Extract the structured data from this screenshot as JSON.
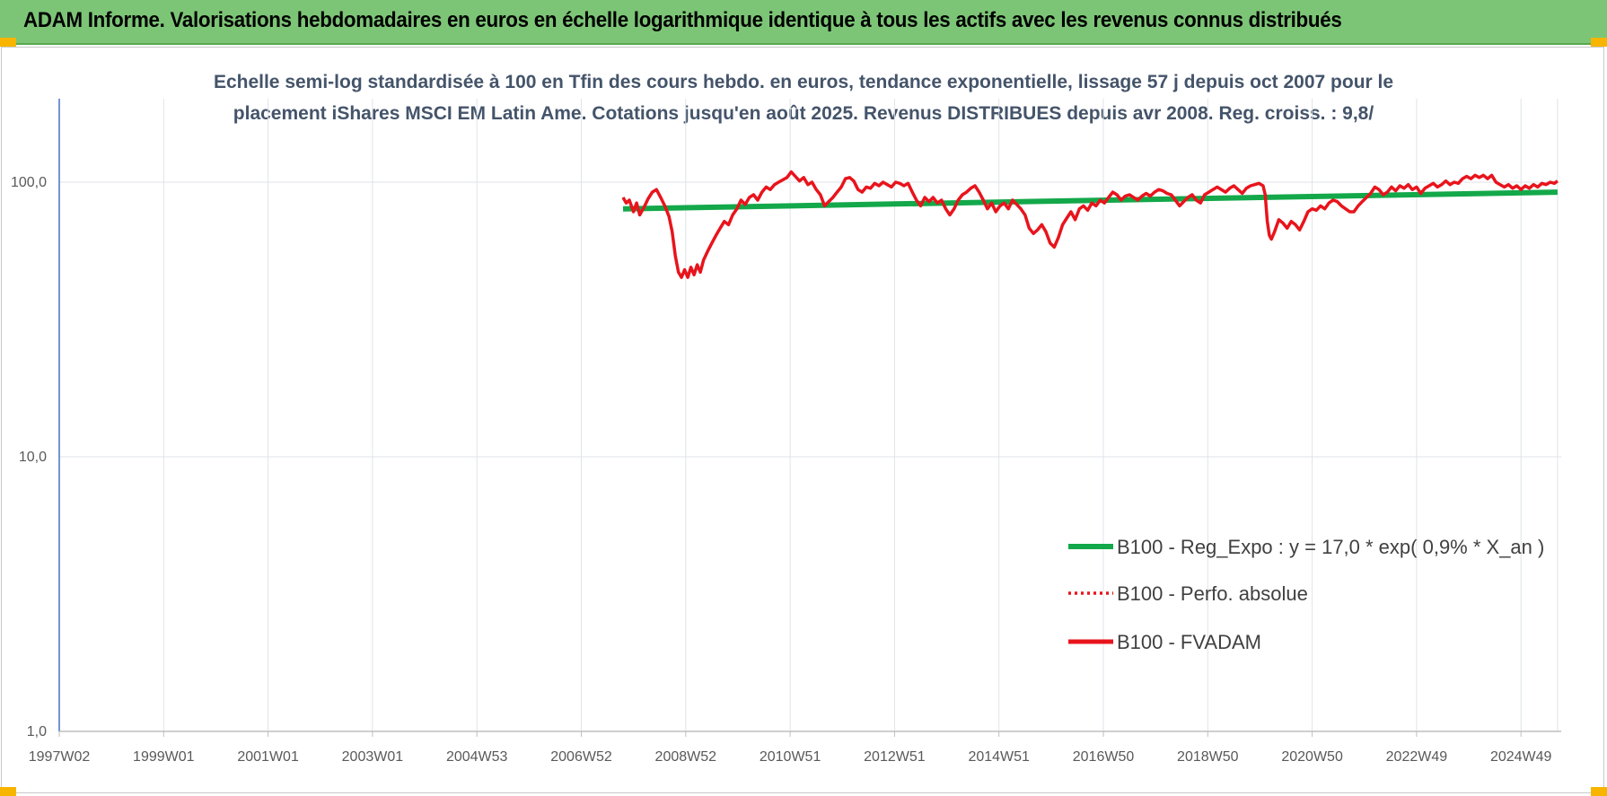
{
  "header": {
    "title": "ADAM Informe. Valorisations hebdomadaires en euros en échelle logarithmique identique à tous les actifs avec les revenus connus distribués"
  },
  "colors": {
    "header_bg": "#7cc576",
    "corner_marks": "#f7b500",
    "regression": "#13a84a",
    "fvadam": "#e8141c",
    "perfo": "#e8141c",
    "grid": "#dfe3e8",
    "axis": "#4472c4"
  },
  "chart_data": {
    "type": "line",
    "title_lines": [
      "Echelle semi-log standardisée à 100 en Tfin des cours hebdo. en euros, tendance exponentielle, lissage 57 j depuis oct 2007 pour le",
      "placement iShares MSCI EM Latin Ame. Cotations jusqu'en août 2025. Revenus DISTRIBUES depuis avr 2008. Reg. croiss. : 9,8/"
    ],
    "y_scale": "log",
    "ylim": [
      1,
      100
    ],
    "y_ticks": [
      "1,0",
      "10,0",
      "100,0"
    ],
    "x_range": [
      1997.0,
      2025.7
    ],
    "x_ticks": [
      {
        "label": "1997W02",
        "year": 1997.0
      },
      {
        "label": "1999W01",
        "year": 1999.0
      },
      {
        "label": "2001W01",
        "year": 2001.0
      },
      {
        "label": "2003W01",
        "year": 2003.0
      },
      {
        "label": "2004W53",
        "year": 2005.0
      },
      {
        "label": "2006W52",
        "year": 2007.0
      },
      {
        "label": "2008W52",
        "year": 2009.0
      },
      {
        "label": "2010W51",
        "year": 2011.0
      },
      {
        "label": "2012W51",
        "year": 2013.0
      },
      {
        "label": "2014W51",
        "year": 2015.0
      },
      {
        "label": "2016W50",
        "year": 2017.0
      },
      {
        "label": "2018W50",
        "year": 2019.0
      },
      {
        "label": "2020W50",
        "year": 2021.0
      },
      {
        "label": "2022W49",
        "year": 2023.0
      },
      {
        "label": "2024W49",
        "year": 2025.0
      }
    ],
    "grid": true,
    "legend_position": "bottom-right",
    "series": [
      {
        "name": "B100 - Reg_Expo : y = 17,0 * exp( 0,9% *  X_an )",
        "style": "solid-thick",
        "color": "#13a84a",
        "points": [
          [
            2007.8,
            80
          ],
          [
            2025.7,
            92
          ]
        ]
      },
      {
        "name": "B100 - Perfo. absolue",
        "style": "dotted",
        "color": "#e8141c",
        "points": []
      },
      {
        "name": "B100 - FVADAM",
        "style": "solid",
        "color": "#e8141c",
        "points": [
          [
            2007.8,
            88
          ],
          [
            2007.86,
            84
          ],
          [
            2007.92,
            86
          ],
          [
            2008.0,
            78
          ],
          [
            2008.06,
            84
          ],
          [
            2008.12,
            76
          ],
          [
            2008.2,
            81
          ],
          [
            2008.28,
            87
          ],
          [
            2008.36,
            92
          ],
          [
            2008.44,
            94
          ],
          [
            2008.52,
            88
          ],
          [
            2008.6,
            82
          ],
          [
            2008.68,
            75
          ],
          [
            2008.74,
            66
          ],
          [
            2008.8,
            54
          ],
          [
            2008.86,
            47
          ],
          [
            2008.92,
            45
          ],
          [
            2008.98,
            48
          ],
          [
            2009.04,
            45
          ],
          [
            2009.1,
            49
          ],
          [
            2009.16,
            46
          ],
          [
            2009.22,
            50
          ],
          [
            2009.28,
            47
          ],
          [
            2009.34,
            52
          ],
          [
            2009.42,
            56
          ],
          [
            2009.5,
            60
          ],
          [
            2009.58,
            64
          ],
          [
            2009.66,
            68
          ],
          [
            2009.74,
            72
          ],
          [
            2009.82,
            70
          ],
          [
            2009.9,
            76
          ],
          [
            2009.98,
            80
          ],
          [
            2010.06,
            86
          ],
          [
            2010.14,
            83
          ],
          [
            2010.22,
            88
          ],
          [
            2010.3,
            90
          ],
          [
            2010.38,
            86
          ],
          [
            2010.46,
            92
          ],
          [
            2010.54,
            96
          ],
          [
            2010.62,
            94
          ],
          [
            2010.7,
            98
          ],
          [
            2010.78,
            100
          ],
          [
            2010.86,
            102
          ],
          [
            2010.94,
            104
          ],
          [
            2011.02,
            109
          ],
          [
            2011.1,
            105
          ],
          [
            2011.18,
            101
          ],
          [
            2011.26,
            104
          ],
          [
            2011.34,
            98
          ],
          [
            2011.42,
            100
          ],
          [
            2011.5,
            94
          ],
          [
            2011.58,
            90
          ],
          [
            2011.66,
            82
          ],
          [
            2011.74,
            85
          ],
          [
            2011.82,
            88
          ],
          [
            2011.9,
            92
          ],
          [
            2011.98,
            96
          ],
          [
            2012.06,
            103
          ],
          [
            2012.14,
            104
          ],
          [
            2012.22,
            101
          ],
          [
            2012.3,
            94
          ],
          [
            2012.38,
            92
          ],
          [
            2012.46,
            96
          ],
          [
            2012.54,
            95
          ],
          [
            2012.62,
            99
          ],
          [
            2012.7,
            97
          ],
          [
            2012.78,
            100
          ],
          [
            2012.86,
            98
          ],
          [
            2012.94,
            96
          ],
          [
            2013.02,
            100
          ],
          [
            2013.1,
            99
          ],
          [
            2013.18,
            97
          ],
          [
            2013.26,
            99
          ],
          [
            2013.34,
            92
          ],
          [
            2013.42,
            86
          ],
          [
            2013.5,
            82
          ],
          [
            2013.58,
            88
          ],
          [
            2013.66,
            85
          ],
          [
            2013.74,
            88
          ],
          [
            2013.82,
            84
          ],
          [
            2013.9,
            86
          ],
          [
            2013.98,
            80
          ],
          [
            2014.06,
            76
          ],
          [
            2014.14,
            80
          ],
          [
            2014.22,
            86
          ],
          [
            2014.3,
            90
          ],
          [
            2014.38,
            92
          ],
          [
            2014.46,
            95
          ],
          [
            2014.54,
            97
          ],
          [
            2014.62,
            92
          ],
          [
            2014.7,
            86
          ],
          [
            2014.78,
            80
          ],
          [
            2014.86,
            84
          ],
          [
            2014.94,
            78
          ],
          [
            2015.02,
            82
          ],
          [
            2015.1,
            84
          ],
          [
            2015.18,
            80
          ],
          [
            2015.26,
            86
          ],
          [
            2015.34,
            83
          ],
          [
            2015.42,
            80
          ],
          [
            2015.5,
            76
          ],
          [
            2015.58,
            68
          ],
          [
            2015.66,
            65
          ],
          [
            2015.74,
            67
          ],
          [
            2015.82,
            70
          ],
          [
            2015.9,
            66
          ],
          [
            2015.98,
            60
          ],
          [
            2016.06,
            58
          ],
          [
            2016.14,
            63
          ],
          [
            2016.22,
            70
          ],
          [
            2016.3,
            74
          ],
          [
            2016.38,
            78
          ],
          [
            2016.46,
            73
          ],
          [
            2016.54,
            80
          ],
          [
            2016.62,
            82
          ],
          [
            2016.7,
            79
          ],
          [
            2016.78,
            84
          ],
          [
            2016.86,
            82
          ],
          [
            2016.94,
            86
          ],
          [
            2017.02,
            84
          ],
          [
            2017.1,
            88
          ],
          [
            2017.18,
            92
          ],
          [
            2017.26,
            90
          ],
          [
            2017.34,
            86
          ],
          [
            2017.42,
            89
          ],
          [
            2017.5,
            90
          ],
          [
            2017.58,
            88
          ],
          [
            2017.66,
            86
          ],
          [
            2017.74,
            89
          ],
          [
            2017.82,
            91
          ],
          [
            2017.9,
            89
          ],
          [
            2017.98,
            92
          ],
          [
            2018.06,
            94
          ],
          [
            2018.14,
            93
          ],
          [
            2018.22,
            91
          ],
          [
            2018.3,
            90
          ],
          [
            2018.38,
            86
          ],
          [
            2018.46,
            82
          ],
          [
            2018.54,
            85
          ],
          [
            2018.62,
            88
          ],
          [
            2018.7,
            90
          ],
          [
            2018.78,
            86
          ],
          [
            2018.86,
            84
          ],
          [
            2018.94,
            90
          ],
          [
            2019.02,
            92
          ],
          [
            2019.1,
            94
          ],
          [
            2019.18,
            96
          ],
          [
            2019.26,
            94
          ],
          [
            2019.34,
            92
          ],
          [
            2019.42,
            95
          ],
          [
            2019.5,
            97
          ],
          [
            2019.58,
            94
          ],
          [
            2019.66,
            91
          ],
          [
            2019.74,
            95
          ],
          [
            2019.82,
            97
          ],
          [
            2019.9,
            98
          ],
          [
            2019.98,
            99
          ],
          [
            2020.06,
            97
          ],
          [
            2020.1,
            90
          ],
          [
            2020.14,
            72
          ],
          [
            2020.18,
            64
          ],
          [
            2020.22,
            62
          ],
          [
            2020.28,
            66
          ],
          [
            2020.36,
            73
          ],
          [
            2020.44,
            71
          ],
          [
            2020.52,
            68
          ],
          [
            2020.6,
            72
          ],
          [
            2020.68,
            70
          ],
          [
            2020.76,
            67
          ],
          [
            2020.84,
            72
          ],
          [
            2020.92,
            78
          ],
          [
            2021.0,
            80
          ],
          [
            2021.08,
            79
          ],
          [
            2021.16,
            82
          ],
          [
            2021.24,
            80
          ],
          [
            2021.32,
            84
          ],
          [
            2021.4,
            86
          ],
          [
            2021.48,
            85
          ],
          [
            2021.56,
            82
          ],
          [
            2021.64,
            80
          ],
          [
            2021.72,
            78
          ],
          [
            2021.8,
            78
          ],
          [
            2021.88,
            82
          ],
          [
            2021.96,
            85
          ],
          [
            2022.04,
            88
          ],
          [
            2022.12,
            91
          ],
          [
            2022.2,
            96
          ],
          [
            2022.28,
            94
          ],
          [
            2022.36,
            90
          ],
          [
            2022.44,
            92
          ],
          [
            2022.52,
            96
          ],
          [
            2022.6,
            93
          ],
          [
            2022.68,
            97
          ],
          [
            2022.76,
            95
          ],
          [
            2022.84,
            98
          ],
          [
            2022.92,
            94
          ],
          [
            2023.0,
            96
          ],
          [
            2023.08,
            91
          ],
          [
            2023.16,
            95
          ],
          [
            2023.24,
            97
          ],
          [
            2023.32,
            99
          ],
          [
            2023.4,
            96
          ],
          [
            2023.48,
            98
          ],
          [
            2023.56,
            101
          ],
          [
            2023.64,
            98
          ],
          [
            2023.72,
            100
          ],
          [
            2023.8,
            99
          ],
          [
            2023.88,
            103
          ],
          [
            2023.96,
            105
          ],
          [
            2024.04,
            103
          ],
          [
            2024.12,
            106
          ],
          [
            2024.2,
            104
          ],
          [
            2024.28,
            106
          ],
          [
            2024.36,
            103
          ],
          [
            2024.44,
            106
          ],
          [
            2024.52,
            100
          ],
          [
            2024.6,
            98
          ],
          [
            2024.68,
            96
          ],
          [
            2024.76,
            98
          ],
          [
            2024.84,
            95
          ],
          [
            2024.92,
            97
          ],
          [
            2025.0,
            94
          ],
          [
            2025.08,
            97
          ],
          [
            2025.16,
            95
          ],
          [
            2025.24,
            98
          ],
          [
            2025.32,
            96
          ],
          [
            2025.4,
            99
          ],
          [
            2025.48,
            98
          ],
          [
            2025.56,
            100
          ],
          [
            2025.64,
            99
          ],
          [
            2025.7,
            101
          ]
        ]
      }
    ]
  }
}
